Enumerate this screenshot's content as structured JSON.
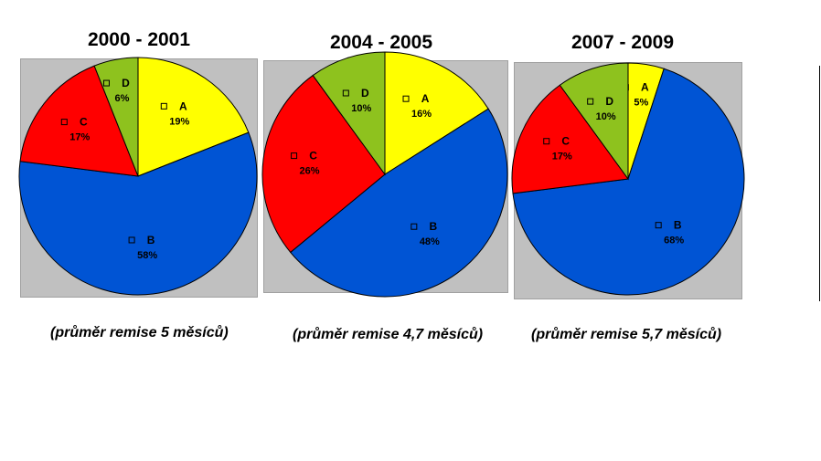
{
  "colors": {
    "A": "#ffff00",
    "B": "#0054d4",
    "C": "#ff0000",
    "D": "#8ec21e",
    "panel": "#c0c0c0"
  },
  "chart_data": [
    {
      "type": "pie",
      "title": "2000 - 2001",
      "caption": "(průměr remise 5 měsíců)",
      "slices": [
        {
          "label": "A",
          "value": 19,
          "display": "19%"
        },
        {
          "label": "B",
          "value": 58,
          "display": "58%"
        },
        {
          "label": "C",
          "value": 17,
          "display": "17%"
        },
        {
          "label": "D",
          "value": 6,
          "display": "6%"
        }
      ]
    },
    {
      "type": "pie",
      "title": "2004 - 2005",
      "caption": "(průměr remise 4,7 měsíců)",
      "slices": [
        {
          "label": "A",
          "value": 16,
          "display": "16%"
        },
        {
          "label": "B",
          "value": 48,
          "display": "48%"
        },
        {
          "label": "C",
          "value": 26,
          "display": "26%"
        },
        {
          "label": "D",
          "value": 10,
          "display": "10%"
        }
      ]
    },
    {
      "type": "pie",
      "title": "2007 - 2009",
      "caption": "(průměr remise 5,7 měsíců)",
      "slices": [
        {
          "label": "A",
          "value": 5,
          "display": "5%"
        },
        {
          "label": "B",
          "value": 68,
          "display": "68%"
        },
        {
          "label": "C",
          "value": 17,
          "display": "17%"
        },
        {
          "label": "D",
          "value": 10,
          "display": "10%"
        }
      ]
    }
  ]
}
